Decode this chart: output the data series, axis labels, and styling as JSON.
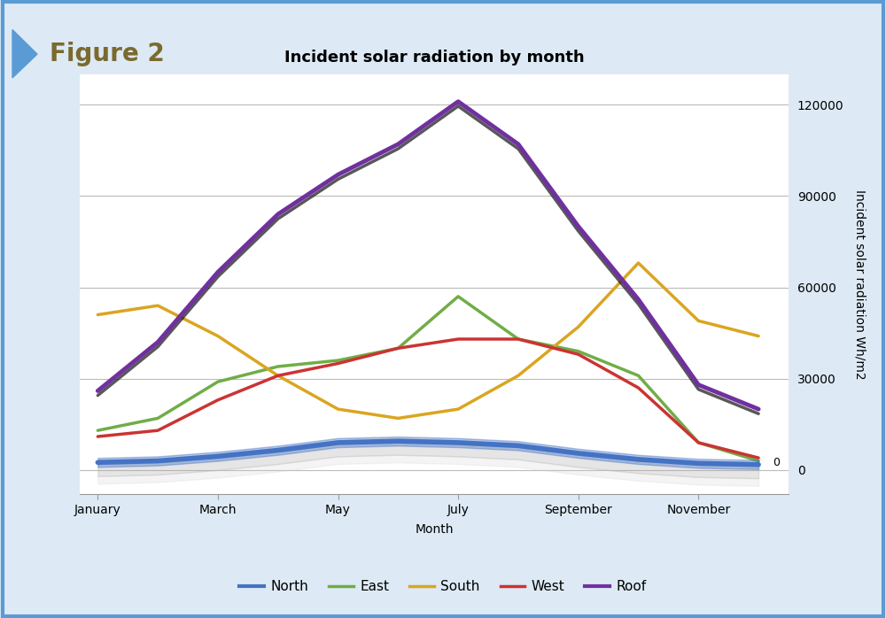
{
  "title": "Incident solar radiation by month",
  "xlabel": "Month",
  "ylabel": "Incident solar radiation Wh/m2",
  "figure_label": "Figure 2",
  "figure_label_color": "#7B6A2E",
  "x_tick_labels": [
    "January",
    "March",
    "May",
    "July",
    "September",
    "November"
  ],
  "x_tick_positions": [
    0,
    2,
    4,
    6,
    8,
    10
  ],
  "ylim": [
    -8000,
    130000
  ],
  "yticks": [
    0,
    30000,
    60000,
    90000,
    120000
  ],
  "series_order": [
    "North",
    "East",
    "South",
    "West",
    "Roof"
  ],
  "series": {
    "North": {
      "values": [
        2500,
        3000,
        4500,
        6500,
        9000,
        9500,
        9000,
        8000,
        5500,
        3500,
        2200,
        1800
      ],
      "color": "#4472C4",
      "linewidth": 4.0,
      "zorder": 5
    },
    "East": {
      "values": [
        13000,
        17000,
        29000,
        34000,
        36000,
        40000,
        57000,
        43000,
        39000,
        31000,
        9000,
        3000
      ],
      "color": "#70AD47",
      "linewidth": 2.5,
      "zorder": 3
    },
    "South": {
      "values": [
        51000,
        54000,
        44000,
        31000,
        20000,
        17000,
        20000,
        31000,
        47000,
        68000,
        49000,
        44000
      ],
      "color": "#DAA520",
      "linewidth": 2.5,
      "zorder": 3
    },
    "West": {
      "values": [
        11000,
        13000,
        23000,
        31000,
        35000,
        40000,
        43000,
        43000,
        38000,
        27000,
        9000,
        4000
      ],
      "color": "#CC3333",
      "linewidth": 2.5,
      "zorder": 3
    },
    "Roof": {
      "values": [
        26000,
        42000,
        65000,
        84000,
        97000,
        107000,
        121000,
        107000,
        80000,
        56000,
        28000,
        20000
      ],
      "color": "#7030A0",
      "linewidth": 3.5,
      "zorder": 4
    }
  },
  "background_color": "#FFFFFF",
  "outer_background": "#DDEAF5",
  "border_color": "#5B9BD5",
  "title_fontsize": 13,
  "axis_label_fontsize": 10,
  "tick_fontsize": 10,
  "legend_fontsize": 11
}
